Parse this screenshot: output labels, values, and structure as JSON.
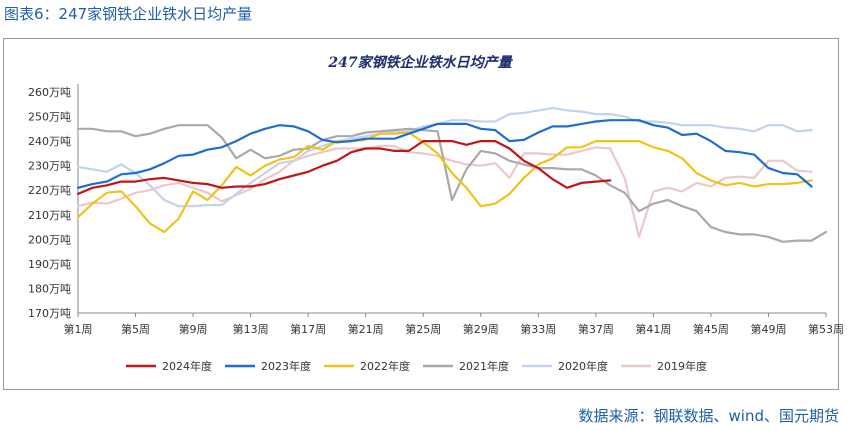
{
  "caption": "图表6：247家钢铁企业铁水日均产量",
  "source": "数据来源：钢联数据、wind、国元期货",
  "colors": {
    "2024年度": "#c0151a",
    "2023年度": "#1c6fd1",
    "2022年度": "#f2c21a",
    "2021年度": "#a9a9a9",
    "2020年度": "#c3d2ee",
    "2019年度": "#ecc8c8"
  },
  "chart_data": {
    "type": "line",
    "title": "247家钢铁企业铁水日均产量",
    "ylim": [
      170,
      260
    ],
    "yticks": [
      170,
      180,
      190,
      200,
      210,
      220,
      230,
      240,
      250,
      260
    ],
    "ytick_labels": [
      "170万吨",
      "180万吨",
      "190万吨",
      "200万吨",
      "210万吨",
      "220万吨",
      "230万吨",
      "240万吨",
      "250万吨",
      "260万吨"
    ],
    "xlim": [
      1,
      53
    ],
    "xticks": [
      1,
      5,
      9,
      13,
      17,
      21,
      25,
      29,
      33,
      37,
      41,
      45,
      49,
      53
    ],
    "xtick_labels": [
      "第1周",
      "第5周",
      "第9周",
      "第13周",
      "第17周",
      "第21周",
      "第25周",
      "第29周",
      "第33周",
      "第37周",
      "第41周",
      "第45周",
      "第49周",
      "第53周"
    ],
    "legend_position": "bottom",
    "grid": false,
    "series": [
      {
        "name": "2024年度",
        "x": [
          1,
          2,
          3,
          4,
          5,
          6,
          7,
          8,
          9,
          10,
          11,
          12,
          13,
          14,
          15,
          16,
          17,
          18,
          19,
          20,
          21,
          22,
          23,
          24,
          25,
          26,
          27,
          28,
          29,
          30,
          31,
          32,
          33,
          34,
          35,
          36,
          37,
          38
        ],
        "values": [
          218.5,
          221,
          222,
          223.5,
          223.5,
          224.5,
          225,
          224,
          223,
          222.5,
          221,
          221.5,
          221.5,
          222.5,
          224.5,
          226,
          227.5,
          230,
          232,
          235.5,
          237,
          237,
          236,
          236,
          240,
          240,
          240,
          238.5,
          240,
          240,
          237,
          232,
          229,
          224.5,
          221,
          223,
          223.5,
          224
        ]
      },
      {
        "name": "2023年度",
        "x": [
          1,
          2,
          3,
          4,
          5,
          6,
          7,
          8,
          9,
          10,
          11,
          12,
          13,
          14,
          15,
          16,
          17,
          18,
          19,
          20,
          21,
          22,
          23,
          24,
          25,
          26,
          27,
          28,
          29,
          30,
          31,
          32,
          33,
          34,
          35,
          36,
          37,
          38,
          39,
          40,
          41,
          42,
          43,
          44,
          45,
          46,
          47,
          48,
          49,
          50,
          51,
          52
        ],
        "values": [
          221,
          222.5,
          223.5,
          226.5,
          227,
          228.5,
          231,
          234,
          234.5,
          236.5,
          237.5,
          240,
          243,
          245,
          246.5,
          246,
          244,
          240.5,
          239.5,
          240,
          241,
          241,
          241,
          243,
          245,
          247,
          247,
          247,
          245,
          244.5,
          240,
          240.5,
          243.5,
          246,
          246,
          247,
          248,
          248.5,
          248.5,
          248.5,
          246.5,
          245.5,
          242.5,
          243,
          240,
          236,
          235.5,
          234.5,
          229,
          227,
          226.5,
          221.5
        ]
      },
      {
        "name": "2022年度",
        "x": [
          1,
          2,
          3,
          4,
          5,
          6,
          7,
          8,
          9,
          10,
          11,
          12,
          13,
          14,
          15,
          16,
          17,
          18,
          19,
          20,
          21,
          22,
          23,
          24,
          25,
          26,
          27,
          28,
          29,
          30,
          31,
          32,
          33,
          34,
          35,
          36,
          37,
          38,
          39,
          40,
          41,
          42,
          43,
          44,
          45,
          46,
          47,
          48,
          49,
          50,
          51,
          52
        ],
        "values": [
          209,
          214.5,
          219,
          219.5,
          213.5,
          206.5,
          203,
          208.5,
          219.5,
          216,
          222,
          229.5,
          226,
          230,
          232.5,
          233.5,
          238,
          236.5,
          240,
          240,
          240.5,
          243,
          243,
          243.5,
          239.5,
          235,
          227,
          221,
          213.5,
          214.5,
          218.5,
          225,
          230.5,
          233,
          237.5,
          237.5,
          240,
          240,
          240,
          240,
          237.5,
          236,
          233,
          227,
          224,
          222,
          223,
          221.5,
          222.5,
          222.5,
          223,
          224
        ]
      },
      {
        "name": "2021年度",
        "x": [
          1,
          2,
          3,
          4,
          5,
          6,
          7,
          8,
          9,
          10,
          11,
          12,
          13,
          14,
          15,
          16,
          17,
          18,
          19,
          20,
          21,
          22,
          23,
          24,
          25,
          26,
          27,
          28,
          29,
          30,
          31,
          32,
          33,
          34,
          35,
          36,
          37,
          38,
          39,
          40,
          41,
          42,
          43,
          44,
          45,
          46,
          47,
          48,
          49,
          50,
          51,
          52,
          53
        ],
        "values": [
          245,
          245,
          244,
          244,
          242,
          243,
          245,
          246.5,
          246.5,
          246.5,
          241.5,
          233,
          236.5,
          233,
          234,
          236.5,
          237,
          240.5,
          242,
          242,
          243.5,
          244,
          244.5,
          245,
          244.5,
          244,
          216,
          228.5,
          236,
          235,
          232,
          230.5,
          229,
          229,
          228.5,
          228.5,
          226,
          222,
          219,
          211.5,
          214.5,
          216,
          213.5,
          211.5,
          205,
          203,
          202,
          202,
          201,
          199,
          199.5,
          199.5,
          203
        ]
      },
      {
        "name": "2020年度",
        "x": [
          1,
          2,
          3,
          4,
          5,
          6,
          7,
          8,
          9,
          10,
          11,
          12,
          13,
          14,
          15,
          16,
          17,
          18,
          19,
          20,
          21,
          22,
          23,
          24,
          25,
          26,
          27,
          28,
          29,
          30,
          31,
          32,
          33,
          34,
          35,
          36,
          37,
          38,
          39,
          40,
          41,
          42,
          43,
          44,
          45,
          46,
          47,
          48,
          49,
          50,
          51,
          52
        ],
        "values": [
          229.5,
          228.5,
          227.5,
          230.5,
          227,
          222,
          216,
          213.5,
          213.5,
          214,
          214,
          218.5,
          223,
          227,
          231,
          232,
          236,
          238,
          240,
          241,
          242,
          243,
          243.5,
          244,
          246,
          247,
          248.5,
          248.5,
          248,
          248,
          251,
          251.5,
          252.5,
          253.5,
          252.5,
          252,
          251,
          251,
          250,
          248,
          248,
          247.5,
          246.5,
          246.5,
          246.5,
          245.5,
          245,
          244,
          246.5,
          246.5,
          244,
          244.5
        ]
      },
      {
        "name": "2019年度",
        "x": [
          1,
          2,
          3,
          4,
          5,
          6,
          7,
          8,
          9,
          10,
          11,
          12,
          13,
          14,
          15,
          16,
          17,
          18,
          19,
          20,
          21,
          22,
          23,
          24,
          25,
          26,
          27,
          28,
          29,
          30,
          31,
          32,
          33,
          34,
          35,
          36,
          37,
          38,
          39,
          40,
          41,
          42,
          43,
          44,
          45,
          46,
          47,
          48,
          49,
          50,
          51,
          52
        ],
        "values": [
          213.5,
          215,
          214.5,
          216.5,
          219,
          220,
          222,
          223,
          221,
          219,
          215.5,
          218,
          220.5,
          224.5,
          227.5,
          232,
          234,
          235.5,
          237,
          237,
          237,
          238,
          238,
          235.5,
          235,
          234,
          232,
          230.5,
          230,
          231,
          225,
          235,
          235,
          234.5,
          234.5,
          236,
          237.5,
          237,
          225,
          201,
          219.5,
          221,
          219.5,
          223,
          221.5,
          225,
          225.5,
          225,
          232,
          232,
          228,
          227.5
        ]
      }
    ]
  }
}
